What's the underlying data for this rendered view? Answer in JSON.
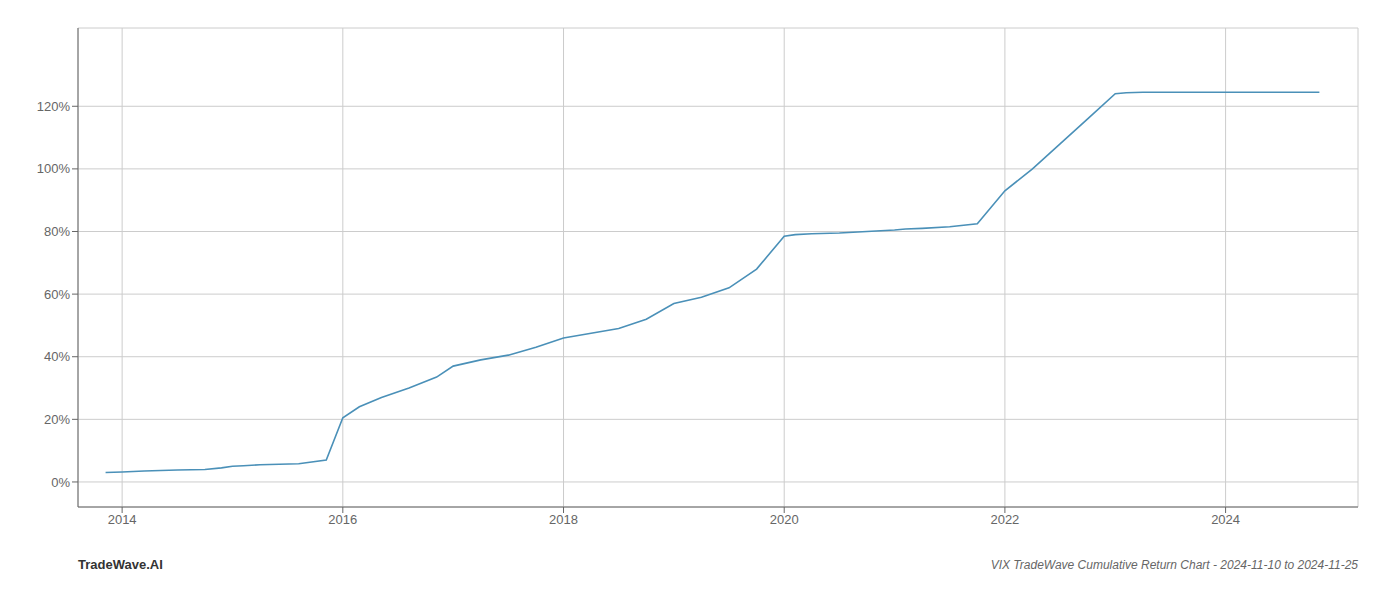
{
  "chart_data": {
    "type": "line",
    "title": "VIX TradeWave Cumulative Return Chart - 2024-11-10 to 2024-11-25",
    "annotations": [
      "TradeWave.AI"
    ],
    "x": [
      2013.85,
      2014.0,
      2014.2,
      2014.5,
      2014.75,
      2014.9,
      2015.0,
      2015.1,
      2015.25,
      2015.6,
      2015.85,
      2016.0,
      2016.15,
      2016.35,
      2016.6,
      2016.85,
      2017.0,
      2017.25,
      2017.5,
      2017.75,
      2018.0,
      2018.25,
      2018.5,
      2018.75,
      2019.0,
      2019.25,
      2019.5,
      2019.75,
      2020.0,
      2020.1,
      2020.25,
      2020.5,
      2020.75,
      2021.0,
      2021.1,
      2021.25,
      2021.5,
      2021.75,
      2022.0,
      2022.25,
      2022.5,
      2022.75,
      2023.0,
      2023.1,
      2023.25,
      2023.75,
      2024.0,
      2024.5,
      2024.85
    ],
    "values": [
      3.0,
      3.2,
      3.5,
      3.8,
      4.0,
      4.5,
      5.0,
      5.2,
      5.5,
      5.8,
      7.0,
      20.5,
      24.0,
      27.0,
      30.0,
      33.5,
      37.0,
      39.0,
      40.5,
      43.0,
      46.0,
      47.5,
      49.0,
      52.0,
      57.0,
      59.0,
      62.0,
      68.0,
      78.5,
      79.0,
      79.3,
      79.5,
      80.0,
      80.5,
      80.8,
      81.0,
      81.5,
      82.5,
      93.0,
      100.0,
      108.0,
      116.0,
      124.0,
      124.3,
      124.5,
      124.5,
      124.5,
      124.5,
      124.5
    ],
    "color": "#4a90b8",
    "xlim": [
      2013.6,
      2025.2
    ],
    "ylim": [
      -8,
      145
    ],
    "xticks": [
      2014,
      2016,
      2018,
      2020,
      2022,
      2024
    ],
    "yticks": [
      {
        "value": 0,
        "label": "0%"
      },
      {
        "value": 20,
        "label": "20%"
      },
      {
        "value": 40,
        "label": "40%"
      },
      {
        "value": 60,
        "label": "60%"
      },
      {
        "value": 80,
        "label": "80%"
      },
      {
        "value": 100,
        "label": "100%"
      },
      {
        "value": 120,
        "label": "120%"
      }
    ],
    "grid": true
  }
}
